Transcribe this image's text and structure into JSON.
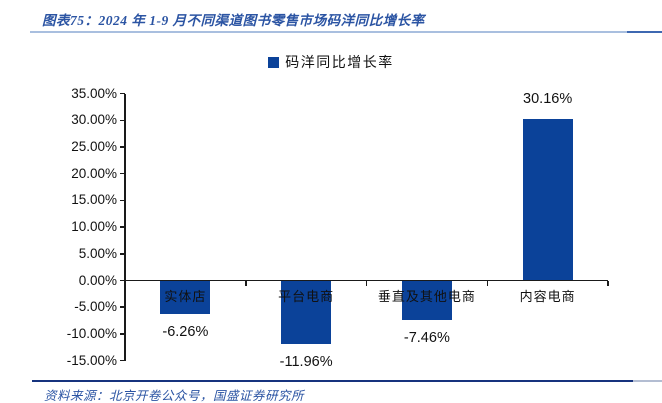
{
  "header": {
    "title": "图表75：2024 年 1-9 月不同渠道图书零售市场码洋同比增长率"
  },
  "footer": {
    "source": "资料来源：北京开卷公众号，国盛证券研究所"
  },
  "chart_data": {
    "type": "bar",
    "title": "2024 年 1-9 月不同渠道图书零售市场码洋同比增长率",
    "legend": [
      {
        "label": "码洋同比增长率",
        "color": "#0B4299"
      }
    ],
    "legend_position": "top-center",
    "categories": [
      "实体店",
      "平台电商",
      "垂直及其他电商",
      "内容电商"
    ],
    "values": [
      -6.26,
      -11.96,
      -7.46,
      30.16
    ],
    "data_labels": [
      "-6.26%",
      "-11.96%",
      "-7.46%",
      "30.16%"
    ],
    "bar_color": "#0B4299",
    "grid": false,
    "y_axis": {
      "min": -15,
      "max": 35,
      "step": 5,
      "tick_labels": [
        "35.00%",
        "30.00%",
        "25.00%",
        "20.00%",
        "15.00%",
        "10.00%",
        "5.00%",
        "0.00%",
        "-5.00%",
        "-10.00%",
        "-15.00%"
      ]
    },
    "xlabel": "",
    "ylabel": ""
  },
  "colors": {
    "accent_blue": "#0B4299",
    "title_blue": "#2B54A3",
    "rule_light": "#A9BFDF",
    "rule_dark": "#16337E",
    "axis_black": "#1a1a1a"
  }
}
